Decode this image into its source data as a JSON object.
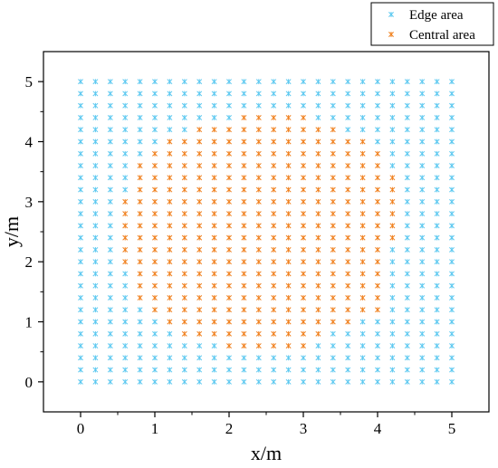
{
  "chart_data": {
    "type": "scatter",
    "xlabel": "x/m",
    "ylabel": "y/m",
    "xlim": [
      -0.5,
      5.5
    ],
    "ylim": [
      -0.5,
      5.5
    ],
    "xticks": [
      0,
      1,
      2,
      3,
      4,
      5
    ],
    "yticks": [
      0,
      1,
      2,
      3,
      4,
      5
    ],
    "minor_ticks_per_major": 1,
    "grid": false,
    "legend_position": "top-right-outside",
    "marker": "asterisk",
    "grid_points": {
      "x_start": 0,
      "x_end": 5,
      "y_start": 0,
      "y_end": 5,
      "step": 0.2
    },
    "central_rows": [
      {
        "y": 0.6,
        "x_from": 2.0,
        "x_to": 3.0
      },
      {
        "y": 0.8,
        "x_from": 1.4,
        "x_to": 3.2
      },
      {
        "y": 1.0,
        "x_from": 1.2,
        "x_to": 3.6
      },
      {
        "y": 1.2,
        "x_from": 1.0,
        "x_to": 4.0
      },
      {
        "y": 1.4,
        "x_from": 0.8,
        "x_to": 4.0
      },
      {
        "y": 1.6,
        "x_from": 0.8,
        "x_to": 4.0
      },
      {
        "y": 1.8,
        "x_from": 0.8,
        "x_to": 4.0
      },
      {
        "y": 2.0,
        "x_from": 0.6,
        "x_to": 4.0
      },
      {
        "y": 2.2,
        "x_from": 0.6,
        "x_to": 4.0
      },
      {
        "y": 2.4,
        "x_from": 0.6,
        "x_to": 4.2
      },
      {
        "y": 2.6,
        "x_from": 0.6,
        "x_to": 4.2
      },
      {
        "y": 2.8,
        "x_from": 0.6,
        "x_to": 4.2
      },
      {
        "y": 3.0,
        "x_from": 0.6,
        "x_to": 4.2
      },
      {
        "y": 3.2,
        "x_from": 0.8,
        "x_to": 4.2
      },
      {
        "y": 3.4,
        "x_from": 0.8,
        "x_to": 4.2
      },
      {
        "y": 3.6,
        "x_from": 0.8,
        "x_to": 4.0
      },
      {
        "y": 3.8,
        "x_from": 1.0,
        "x_to": 4.0
      },
      {
        "y": 4.0,
        "x_from": 1.2,
        "x_to": 3.8
      },
      {
        "y": 4.2,
        "x_from": 1.6,
        "x_to": 3.4
      },
      {
        "y": 4.4,
        "x_from": 2.2,
        "x_to": 3.0
      }
    ],
    "series": [
      {
        "name": "Edge area",
        "color": "#5bc8f0",
        "region": "outside central_rows"
      },
      {
        "name": "Central area",
        "color": "#f07f1c",
        "region": "central_rows"
      }
    ]
  }
}
